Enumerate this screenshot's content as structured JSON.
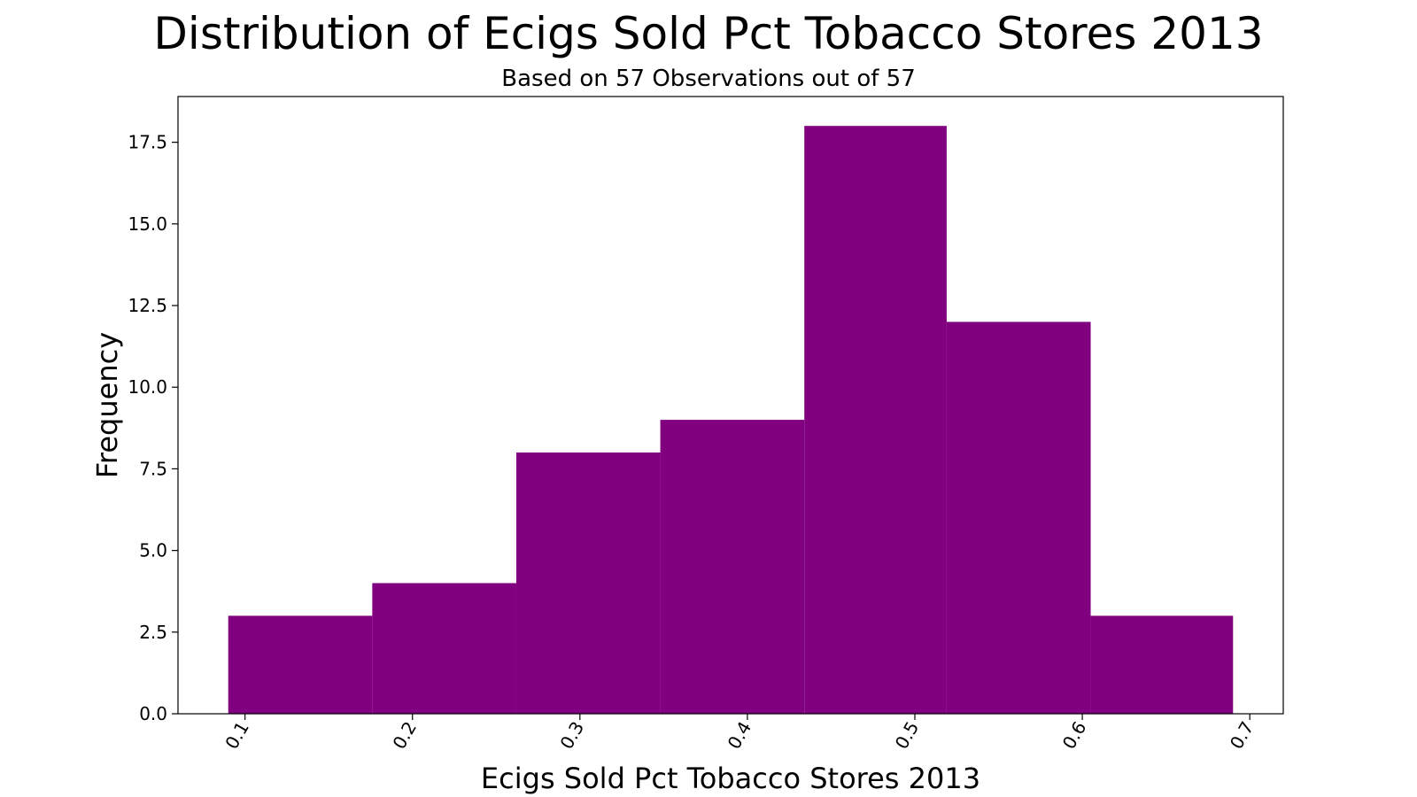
{
  "chart_data": {
    "type": "bar",
    "title": "Distribution of Ecigs Sold Pct Tobacco Stores 2013",
    "subtitle": "Based on 57 Observations out of 57",
    "xlabel": "Ecigs Sold Pct Tobacco Stores 2013",
    "ylabel": "Frequency",
    "bins": [
      {
        "start": 0.09,
        "end": 0.176,
        "count": 3
      },
      {
        "start": 0.176,
        "end": 0.262,
        "count": 4
      },
      {
        "start": 0.262,
        "end": 0.348,
        "count": 8
      },
      {
        "start": 0.348,
        "end": 0.434,
        "count": 9
      },
      {
        "start": 0.434,
        "end": 0.519,
        "count": 18
      },
      {
        "start": 0.519,
        "end": 0.605,
        "count": 12
      },
      {
        "start": 0.605,
        "end": 0.69,
        "count": 3
      }
    ],
    "xlim": [
      0.06,
      0.72
    ],
    "ylim": [
      0,
      18.9
    ],
    "xticks": [
      0.1,
      0.2,
      0.3,
      0.4,
      0.5,
      0.6,
      0.7
    ],
    "xtick_labels": [
      "0.1",
      "0.2",
      "0.3",
      "0.4",
      "0.5",
      "0.6",
      "0.7"
    ],
    "yticks": [
      0,
      2.5,
      5,
      7.5,
      10,
      12.5,
      15,
      17.5
    ],
    "ytick_labels": [
      "0.0",
      "2.5",
      "5.0",
      "7.5",
      "10.0",
      "12.5",
      "15.0",
      "17.5"
    ],
    "bar_color": "#800080",
    "grid": false,
    "legend": "none"
  }
}
